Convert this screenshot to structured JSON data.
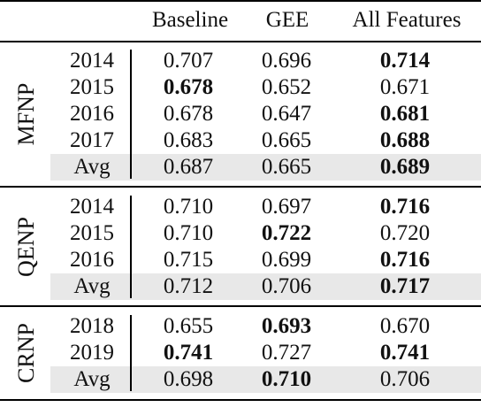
{
  "table": {
    "headers": [
      "Baseline",
      "GEE",
      "All Features"
    ],
    "groups": [
      {
        "name": "MFNP",
        "rows": [
          {
            "year": "2014",
            "values": [
              "0.707",
              "0.696",
              "0.714"
            ],
            "bold": [
              false,
              false,
              true
            ],
            "avg": false
          },
          {
            "year": "2015",
            "values": [
              "0.678",
              "0.652",
              "0.671"
            ],
            "bold": [
              true,
              false,
              false
            ],
            "avg": false
          },
          {
            "year": "2016",
            "values": [
              "0.678",
              "0.647",
              "0.681"
            ],
            "bold": [
              false,
              false,
              true
            ],
            "avg": false
          },
          {
            "year": "2017",
            "values": [
              "0.683",
              "0.665",
              "0.688"
            ],
            "bold": [
              false,
              false,
              true
            ],
            "avg": false
          },
          {
            "year": "Avg",
            "values": [
              "0.687",
              "0.665",
              "0.689"
            ],
            "bold": [
              false,
              false,
              true
            ],
            "avg": true
          }
        ]
      },
      {
        "name": "QENP",
        "rows": [
          {
            "year": "2014",
            "values": [
              "0.710",
              "0.697",
              "0.716"
            ],
            "bold": [
              false,
              false,
              true
            ],
            "avg": false
          },
          {
            "year": "2015",
            "values": [
              "0.710",
              "0.722",
              "0.720"
            ],
            "bold": [
              false,
              true,
              false
            ],
            "avg": false
          },
          {
            "year": "2016",
            "values": [
              "0.715",
              "0.699",
              "0.716"
            ],
            "bold": [
              false,
              false,
              true
            ],
            "avg": false
          },
          {
            "year": "Avg",
            "values": [
              "0.712",
              "0.706",
              "0.717"
            ],
            "bold": [
              false,
              false,
              true
            ],
            "avg": true
          }
        ]
      },
      {
        "name": "CRNP",
        "rows": [
          {
            "year": "2018",
            "values": [
              "0.655",
              "0.693",
              "0.670"
            ],
            "bold": [
              false,
              true,
              false
            ],
            "avg": false
          },
          {
            "year": "2019",
            "values": [
              "0.741",
              "0.727",
              "0.741"
            ],
            "bold": [
              true,
              false,
              true
            ],
            "avg": false
          },
          {
            "year": "Avg",
            "values": [
              "0.698",
              "0.710",
              "0.706"
            ],
            "bold": [
              false,
              true,
              false
            ],
            "avg": true
          }
        ]
      }
    ]
  }
}
